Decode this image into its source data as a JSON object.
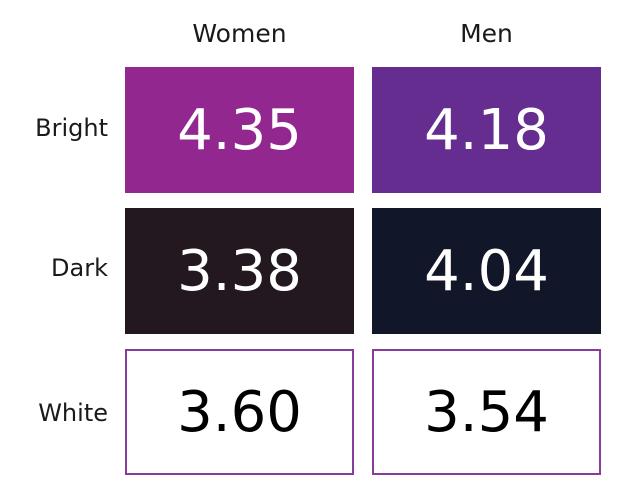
{
  "chart_data": {
    "type": "table",
    "columns": [
      "Women",
      "Men"
    ],
    "rows": [
      "Bright",
      "Dark",
      "White"
    ],
    "values": [
      [
        4.35,
        4.18
      ],
      [
        3.38,
        4.04
      ],
      [
        3.6,
        3.54
      ]
    ],
    "display_values": [
      [
        "4.35",
        "4.18"
      ],
      [
        "3.38",
        "4.04"
      ],
      [
        "3.60",
        "3.54"
      ]
    ],
    "cell_colors": [
      [
        "#92278f",
        "#662d91"
      ],
      [
        "#231820",
        "#111629"
      ],
      [
        "#ffffff",
        "#ffffff"
      ]
    ],
    "text_colors": [
      [
        "#ffffff",
        "#ffffff"
      ],
      [
        "#ffffff",
        "#ffffff"
      ],
      [
        "#000000",
        "#000000"
      ]
    ],
    "outline_color": "#8a3c9a"
  }
}
